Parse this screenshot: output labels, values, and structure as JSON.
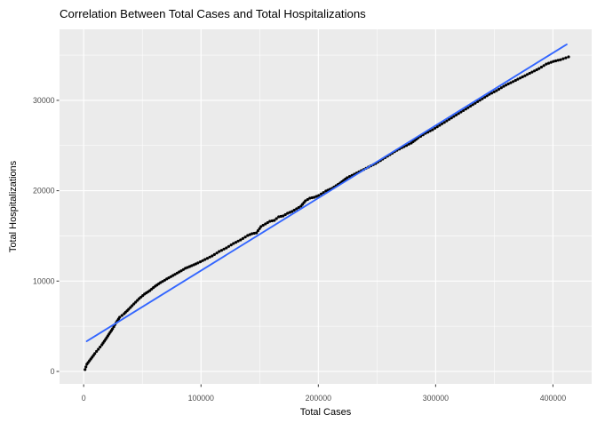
{
  "chart_data": {
    "type": "scatter",
    "title": "Correlation Between Total Cases and Total Hospitalizations",
    "xlabel": "Total Cases",
    "ylabel": "Total Hospitalizations",
    "legend_position": "none",
    "grid": true,
    "xlim": [
      -20600,
      433000
    ],
    "ylim": [
      -1380,
      37860
    ],
    "x_ticks": {
      "values": [
        0,
        100000,
        200000,
        300000,
        400000
      ],
      "labels": [
        "0",
        "100000",
        "200000",
        "300000",
        "400000"
      ]
    },
    "y_ticks": {
      "values": [
        0,
        10000,
        20000,
        30000
      ],
      "labels": [
        "0",
        "10000",
        "20000",
        "30000"
      ]
    },
    "x_minor": [
      50000,
      150000,
      250000,
      350000
    ],
    "y_minor": [
      5000,
      15000,
      25000,
      35000
    ],
    "colors": {
      "plot_bg": "#FFFFFF",
      "panel_bg": "#EBEBEB",
      "gridline": "#FFFFFF",
      "point": "#000000",
      "smooth_line": "#3366FF",
      "tick_label": "#4D4D4D",
      "tick_mark": "#333333",
      "axis_title": "#000000",
      "title": "#000000"
    },
    "series": [
      {
        "name": "observations",
        "type": "points",
        "color": "#000000",
        "points": [
          [
            1100,
            200
          ],
          [
            2700,
            790
          ],
          [
            4900,
            1180
          ],
          [
            7200,
            1570
          ],
          [
            9500,
            1970
          ],
          [
            12500,
            2460
          ],
          [
            15500,
            2950
          ],
          [
            18600,
            3540
          ],
          [
            21600,
            4130
          ],
          [
            24600,
            4720
          ],
          [
            27700,
            5410
          ],
          [
            30700,
            6000
          ],
          [
            34500,
            6390
          ],
          [
            38300,
            6880
          ],
          [
            42800,
            7470
          ],
          [
            47300,
            8060
          ],
          [
            51900,
            8560
          ],
          [
            56400,
            8950
          ],
          [
            61000,
            9440
          ],
          [
            65500,
            9830
          ],
          [
            70800,
            10230
          ],
          [
            76100,
            10620
          ],
          [
            81400,
            11010
          ],
          [
            86700,
            11410
          ],
          [
            92000,
            11700
          ],
          [
            97400,
            12000
          ],
          [
            103400,
            12390
          ],
          [
            109500,
            12780
          ],
          [
            115500,
            13270
          ],
          [
            121600,
            13670
          ],
          [
            127700,
            14160
          ],
          [
            133700,
            14550
          ],
          [
            139800,
            15040
          ],
          [
            143500,
            15240
          ],
          [
            147300,
            15340
          ],
          [
            151100,
            16030
          ],
          [
            154900,
            16320
          ],
          [
            158700,
            16620
          ],
          [
            162500,
            16720
          ],
          [
            166200,
            17110
          ],
          [
            170000,
            17210
          ],
          [
            173800,
            17500
          ],
          [
            177600,
            17700
          ],
          [
            181400,
            17990
          ],
          [
            185200,
            18290
          ],
          [
            189000,
            18880
          ],
          [
            192800,
            19170
          ],
          [
            196600,
            19270
          ],
          [
            200400,
            19470
          ],
          [
            206400,
            19960
          ],
          [
            211700,
            20260
          ],
          [
            218600,
            20850
          ],
          [
            224600,
            21440
          ],
          [
            230700,
            21830
          ],
          [
            236700,
            22220
          ],
          [
            242800,
            22620
          ],
          [
            248900,
            23010
          ],
          [
            254900,
            23500
          ],
          [
            261000,
            23990
          ],
          [
            267000,
            24480
          ],
          [
            273100,
            24880
          ],
          [
            279200,
            25270
          ],
          [
            285200,
            25860
          ],
          [
            291300,
            26350
          ],
          [
            297400,
            26750
          ],
          [
            303400,
            27240
          ],
          [
            309500,
            27730
          ],
          [
            315500,
            28220
          ],
          [
            321600,
            28710
          ],
          [
            327700,
            29200
          ],
          [
            333700,
            29690
          ],
          [
            339800,
            30180
          ],
          [
            345800,
            30670
          ],
          [
            351900,
            31070
          ],
          [
            358000,
            31560
          ],
          [
            364000,
            31950
          ],
          [
            370100,
            32340
          ],
          [
            376100,
            32730
          ],
          [
            382200,
            33130
          ],
          [
            388200,
            33520
          ],
          [
            394300,
            34010
          ],
          [
            400400,
            34310
          ],
          [
            406400,
            34500
          ],
          [
            413300,
            34810
          ]
        ]
      },
      {
        "name": "linear-fit",
        "type": "line",
        "color": "#3366FF",
        "points": [
          [
            2600,
            3340
          ],
          [
            411700,
            36190
          ]
        ]
      }
    ]
  }
}
